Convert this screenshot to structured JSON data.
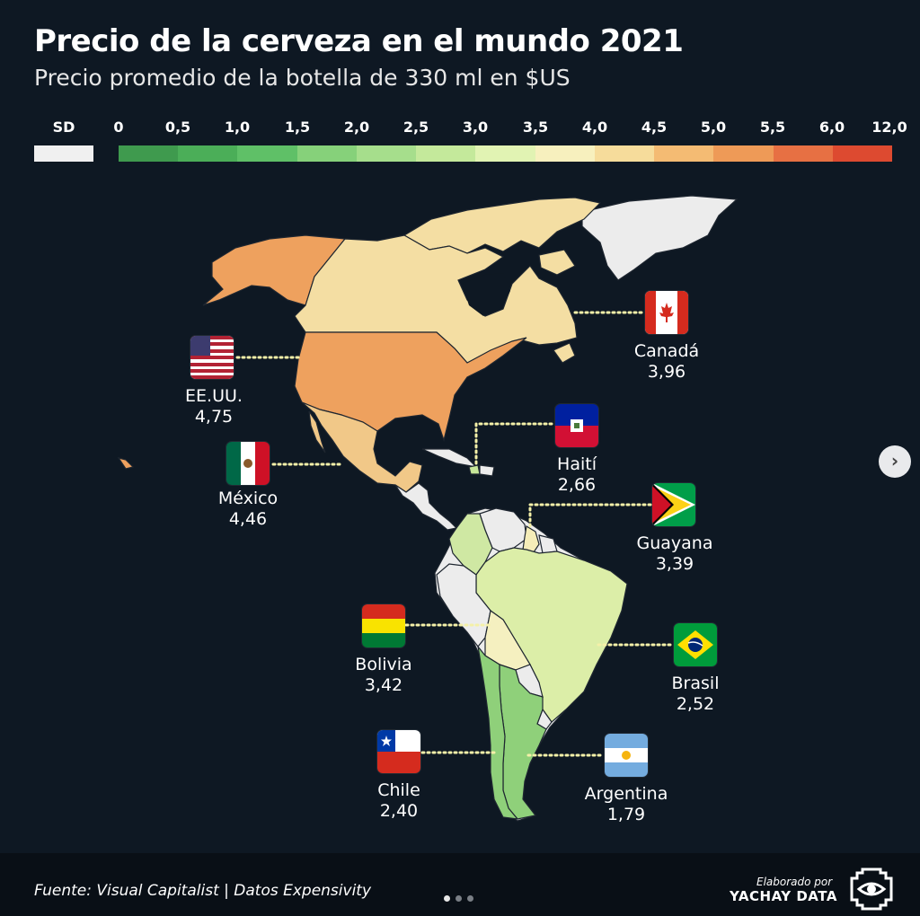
{
  "header": {
    "title": "Precio de la cerveza en el mundo 2021",
    "subtitle": "Precio promedio de la botella de 330 ml en $US"
  },
  "legend": {
    "sd_label": "SD",
    "sd_color": "#f0f0f0",
    "ticks": [
      "0",
      "0,5",
      "1,0",
      "1,5",
      "2,0",
      "2,5",
      "3,0",
      "3,5",
      "4,0",
      "4,5",
      "5,0",
      "5,5",
      "6,0",
      "12,0"
    ],
    "colors": [
      "#3f9a4e",
      "#4bae58",
      "#5fc067",
      "#86d17a",
      "#a6de8c",
      "#c4e99b",
      "#e1f3b3",
      "#f7f0be",
      "#f6dc9b",
      "#f4bb73",
      "#ee9a57",
      "#e77043",
      "#dd4a30",
      "#cc2f24"
    ]
  },
  "map": {
    "colors": {
      "land_sd": "#ececec",
      "border": "#1e2630",
      "canada": "#f4dea3",
      "usa": "#eea15e",
      "mexico": "#f1c888",
      "south_america_base": "#ececec",
      "brazil": "#dceea8",
      "colombia": "#cfe8a3",
      "venezuela": "#ececec",
      "guyana": "#f5edb8",
      "bolivia": "#f5f0c0",
      "peru": "#ececec",
      "argentina": "#8fd07a",
      "chile": "#8fd07a",
      "haiti": "#c6e699",
      "connector": "#f4f0a8"
    }
  },
  "countries": [
    {
      "name": "Canadá",
      "value": "3,96",
      "flag": "canada-flag"
    },
    {
      "name": "EE.UU.",
      "value": "4,75",
      "flag": "usa-flag"
    },
    {
      "name": "Haití",
      "value": "2,66",
      "flag": "haiti-flag"
    },
    {
      "name": "México",
      "value": "4,46",
      "flag": "mexico-flag"
    },
    {
      "name": "Guayana",
      "value": "3,39",
      "flag": "guyana-flag"
    },
    {
      "name": "Bolivia",
      "value": "3,42",
      "flag": "bolivia-flag"
    },
    {
      "name": "Brasil",
      "value": "2,52",
      "flag": "brazil-flag"
    },
    {
      "name": "Chile",
      "value": "2,40",
      "flag": "chile-flag"
    },
    {
      "name": "Argentina",
      "value": "1,79",
      "flag": "argentina-flag"
    }
  ],
  "footer": {
    "source": "Fuente: Visual Capitalist | Datos Expensivity",
    "credit_small": "Elaborado por",
    "credit_brand": "YACHAY DATA",
    "logo_icon": "eye-logo-icon"
  },
  "carousel": {
    "next_icon": "chevron-right-icon",
    "dots": 3,
    "active_dot": 0
  }
}
